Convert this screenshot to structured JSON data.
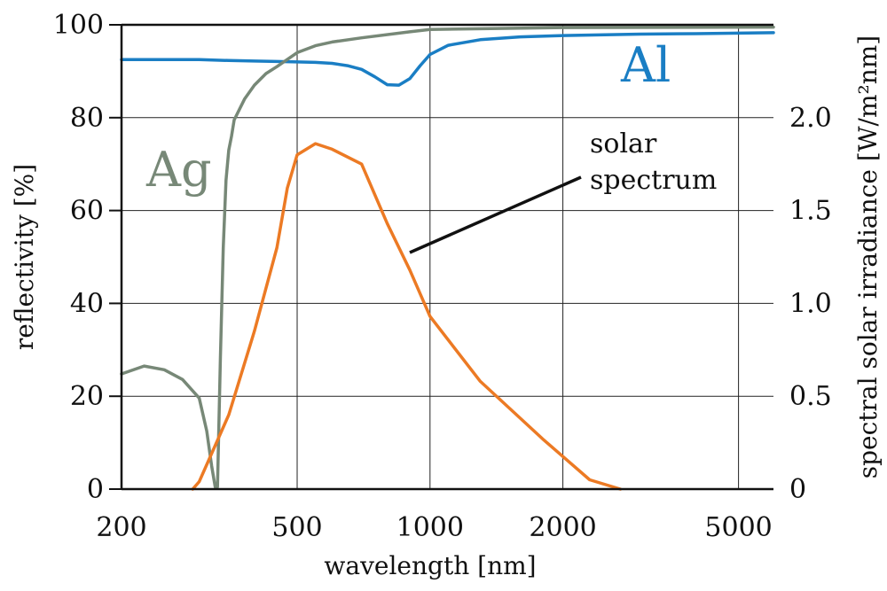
{
  "chart_data": {
    "type": "line",
    "xlabel": "wavelength [nm]",
    "ylabel": "reflectivity [%]",
    "ylabel_right": "spectral solar irradiance [W/m²nm]",
    "x_scale": "log",
    "xlim": [
      200,
      6000
    ],
    "ylim": [
      0,
      100
    ],
    "ylim_right": [
      0,
      2.5
    ],
    "x_ticks": [
      200,
      500,
      1000,
      2000,
      5000
    ],
    "y_ticks": [
      0,
      20,
      40,
      60,
      80,
      100
    ],
    "y_ticks_right": [
      0,
      0.5,
      1.0,
      1.5,
      2.0
    ],
    "grid": true,
    "colors": {
      "Al": "#1a7ec4",
      "Ag": "#778877",
      "solar": "#ec7a24",
      "frame": "#111111"
    },
    "annotation": {
      "lines": [
        "solar",
        "spectrum"
      ]
    },
    "series": [
      {
        "name": "Al",
        "axis": "left",
        "x": [
          200,
          250,
          300,
          350,
          400,
          450,
          500,
          550,
          600,
          650,
          700,
          750,
          800,
          850,
          900,
          950,
          1000,
          1100,
          1300,
          1600,
          2000,
          3000,
          4000,
          6000
        ],
        "y": [
          92.5,
          92.5,
          92.5,
          92.3,
          92.2,
          92.1,
          92.0,
          91.9,
          91.7,
          91.2,
          90.4,
          88.8,
          87.1,
          87.0,
          88.4,
          91.2,
          93.6,
          95.6,
          96.8,
          97.4,
          97.7,
          98.0,
          98.1,
          98.3
        ]
      },
      {
        "name": "Ag",
        "axis": "left",
        "x": [
          200,
          225,
          250,
          275,
          300,
          312,
          320,
          326,
          330,
          335,
          340,
          345,
          350,
          355,
          360,
          380,
          400,
          425,
          450,
          500,
          550,
          600,
          700,
          900,
          1000,
          2000,
          6000
        ],
        "y": [
          24.8,
          26.5,
          25.7,
          23.6,
          19.6,
          12.5,
          5.0,
          0.5,
          0.5,
          28.5,
          52.0,
          66.5,
          73.0,
          76.0,
          79.5,
          84.0,
          87.0,
          89.5,
          91.0,
          94.0,
          95.5,
          96.3,
          97.2,
          98.5,
          99.0,
          99.4,
          99.5
        ]
      },
      {
        "name": "solar",
        "axis": "right",
        "x": [
          290,
          300,
          350,
          400,
          450,
          475,
          500,
          550,
          600,
          700,
          800,
          900,
          1000,
          1300,
          1800,
          2300,
          2700
        ],
        "y": [
          0.0,
          0.04,
          0.4,
          0.85,
          1.3,
          1.62,
          1.8,
          1.86,
          1.83,
          1.75,
          1.43,
          1.18,
          0.93,
          0.58,
          0.27,
          0.05,
          0.0
        ]
      }
    ]
  }
}
